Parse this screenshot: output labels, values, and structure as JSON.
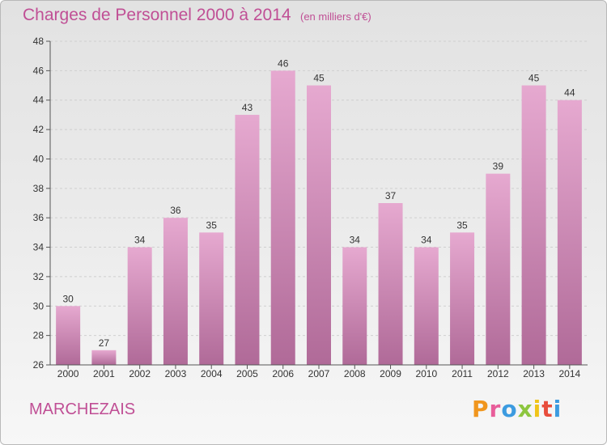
{
  "header": {
    "title": "Charges de Personnel 2000 à 2014",
    "subtitle": "(en milliers d'€)"
  },
  "footer": {
    "town": "MARCHEZAIS",
    "logo_text": "Proxiti"
  },
  "colors": {
    "bar_top": "#e6a9d0",
    "bar_bottom": "#b06a98",
    "title": "#c04f95"
  },
  "chart_data": {
    "type": "bar",
    "title": "Charges de Personnel 2000 à 2014",
    "subtitle": "(en milliers d'€)",
    "xlabel": "",
    "ylabel": "",
    "categories": [
      "2000",
      "2001",
      "2002",
      "2003",
      "2004",
      "2005",
      "2006",
      "2007",
      "2008",
      "2009",
      "2010",
      "2011",
      "2012",
      "2013",
      "2014"
    ],
    "values": [
      30,
      27,
      34,
      36,
      35,
      43,
      46,
      45,
      34,
      37,
      34,
      35,
      39,
      45,
      44
    ],
    "ylim": [
      26,
      48
    ],
    "yticks": [
      26,
      28,
      30,
      32,
      34,
      36,
      38,
      40,
      42,
      44,
      46,
      48
    ],
    "grid": true
  }
}
